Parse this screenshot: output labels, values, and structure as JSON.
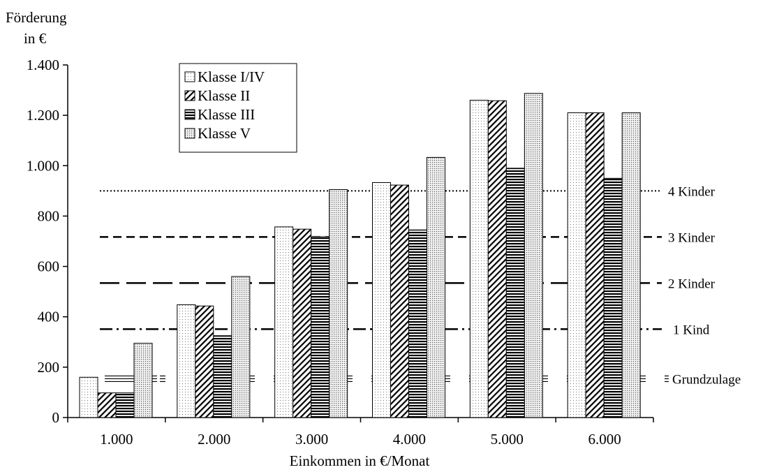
{
  "chart_data": {
    "type": "bar",
    "ylabel_line1": "Förderung",
    "ylabel_line2": "in €",
    "xlabel": "Einkommen in €/Monat",
    "categories": [
      "1.000",
      "2.000",
      "3.000",
      "4.000",
      "5.000",
      "6.000"
    ],
    "ylim": [
      0,
      1400
    ],
    "yticks": [
      0,
      200,
      400,
      600,
      800,
      1000,
      1200,
      1400
    ],
    "ytick_labels": [
      "0",
      "200",
      "400",
      "600",
      "800",
      "1.000",
      "1.200",
      "1.400"
    ],
    "series": [
      {
        "name": "Klasse I/IV",
        "pattern": "dots-fine",
        "values": [
          160,
          448,
          757,
          933,
          1260,
          1210
        ]
      },
      {
        "name": "Klasse II",
        "pattern": "diagonal",
        "values": [
          98,
          443,
          748,
          923,
          1258,
          1210
        ]
      },
      {
        "name": "Klasse III",
        "pattern": "horizontal",
        "values": [
          98,
          325,
          718,
          745,
          990,
          950
        ]
      },
      {
        "name": "Klasse V",
        "pattern": "dots-dense",
        "values": [
          295,
          560,
          905,
          1033,
          1287,
          1210
        ]
      }
    ],
    "legend": {
      "position": "top-left"
    },
    "grid": false,
    "reference_lines": [
      {
        "label": "4 Kinder",
        "value": 900,
        "style": "dotted"
      },
      {
        "label": "3 Kinder",
        "value": 717,
        "style": "dashed"
      },
      {
        "label": "2 Kinder",
        "value": 534,
        "style": "long-dashed"
      },
      {
        "label": "1 Kind",
        "value": 351,
        "style": "dash-dot"
      },
      {
        "label": "Grundzulage",
        "value": 154,
        "style": "double-line"
      }
    ]
  }
}
